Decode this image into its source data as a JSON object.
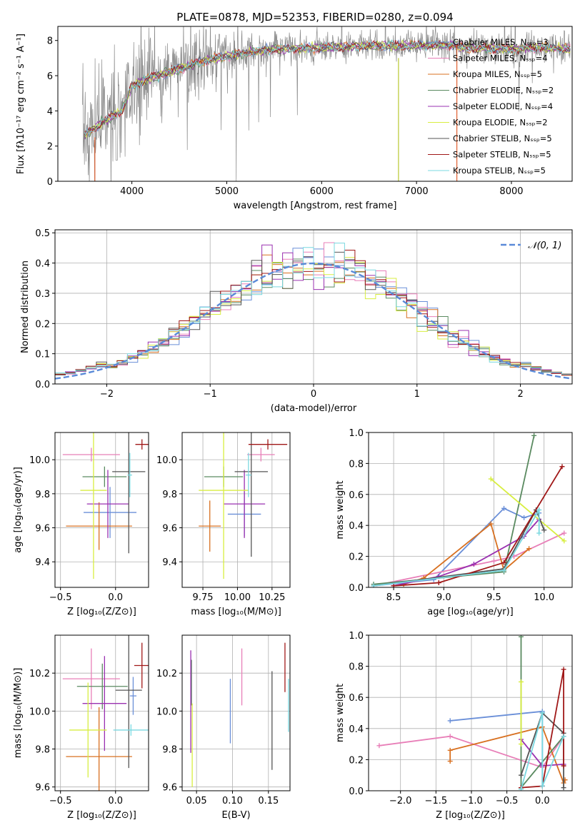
{
  "chart_data": [
    {
      "id": "spectrum",
      "type": "line",
      "title": "PLATE=0878, MJD=52353, FIBERID=0280, z=0.094",
      "xlabel": "wavelength [Angstrom, rest frame]",
      "ylabel": "Flux [fλ10⁻¹⁷ erg cm⁻² s⁻¹ A⁻¹]",
      "xlim": [
        3220,
        8640
      ],
      "ylim": [
        0,
        8.8
      ],
      "xticks": [
        4000,
        5000,
        6000,
        7000,
        8000
      ],
      "yticks": [
        0,
        2,
        4,
        6,
        8
      ],
      "grid": false,
      "legend_position": "upper-right",
      "series": [
        {
          "name": "Chabrier MILES, Nₛₛₚ=3",
          "color": "#6a8fd8"
        },
        {
          "name": "Salpeter MILES, Nₛₛₚ=4",
          "color": "#e87fb8"
        },
        {
          "name": "Kroupa MILES, Nₛₛₚ=5",
          "color": "#d87020"
        },
        {
          "name": "Chabrier ELODIE, Nₛₛₚ=2",
          "color": "#5a8a60"
        },
        {
          "name": "Salpeter ELODIE, Nₛₛₚ=4",
          "color": "#9a30b0"
        },
        {
          "name": "Kroupa ELODIE, Nₛₛₚ=2",
          "color": "#d8ee40"
        },
        {
          "name": "Chabrier STELIB, Nₛₛₚ=5",
          "color": "#555555"
        },
        {
          "name": "Salpeter STELIB, Nₛₛₚ=5",
          "color": "#a01818"
        },
        {
          "name": "Kroupa STELIB, Nₛₛₚ=5",
          "color": "#7ad8e0"
        }
      ],
      "continuum_x": [
        3500,
        3700,
        3900,
        4000,
        4200,
        4500,
        4800,
        5000,
        5200,
        5500,
        6000,
        6500,
        7000,
        7400,
        7500,
        8000,
        8300,
        8600
      ],
      "continuum_y": [
        2.6,
        3.4,
        4.0,
        5.4,
        5.9,
        6.4,
        6.9,
        7.1,
        7.3,
        7.5,
        7.6,
        7.7,
        7.7,
        7.75,
        7.6,
        7.5,
        7.6,
        7.5
      ]
    },
    {
      "id": "residuals",
      "type": "line",
      "xlabel": "(data-model)/error",
      "ylabel": "Normed distribution",
      "xlim": [
        -2.5,
        2.5
      ],
      "ylim": [
        0,
        0.51
      ],
      "xticks": [
        -2,
        -1,
        0,
        1,
        2
      ],
      "yticks": [
        0.0,
        0.1,
        0.2,
        0.3,
        0.4,
        0.5
      ],
      "grid": true,
      "legend": [
        "𝒩(0, 1)"
      ],
      "legend_position": "upper-right",
      "gauss_color": "#5a8ad8",
      "bin_width": 0.1
    },
    {
      "id": "age-vs-Z",
      "type": "scatter",
      "xlabel": "Z [log₁₀(Z/Z⊙)]",
      "ylabel": "age  [log₁₀(age/yr)]",
      "xlim": [
        -0.55,
        0.3
      ],
      "ylim": [
        9.25,
        10.16
      ],
      "xticks": [
        -0.5,
        0.0
      ],
      "yticks": [
        9.4,
        9.6,
        9.8,
        10.0
      ],
      "grid": true,
      "points": [
        {
          "series": 0,
          "x": -0.05,
          "y": 9.69,
          "xerr": 0.24,
          "yerr": 0.15
        },
        {
          "series": 1,
          "x": -0.22,
          "y": 10.03,
          "xerr": 0.26,
          "yerr": 0.04
        },
        {
          "series": 2,
          "x": -0.15,
          "y": 9.61,
          "xerr": 0.3,
          "yerr": 0.14
        },
        {
          "series": 3,
          "x": -0.1,
          "y": 9.9,
          "xerr": 0.2,
          "yerr": 0.06
        },
        {
          "series": 4,
          "x": -0.07,
          "y": 9.74,
          "xerr": 0.19,
          "yerr": 0.2
        },
        {
          "series": 5,
          "x": -0.2,
          "y": 9.82,
          "xerr": 0.12,
          "yerr": 0.52
        },
        {
          "series": 6,
          "x": 0.12,
          "y": 9.93,
          "xerr": 0.15,
          "yerr": 0.48
        },
        {
          "series": 7,
          "x": 0.24,
          "y": 10.09,
          "xerr": 0.06,
          "yerr": 0.03
        },
        {
          "series": 8,
          "x": 0.13,
          "y": 9.91,
          "xerr": 0.02,
          "yerr": 0.13
        }
      ]
    },
    {
      "id": "age-vs-mass",
      "type": "scatter",
      "xlabel": "mass [log₁₀(M/M⊙)]",
      "ylabel": "",
      "xlim": [
        9.6,
        10.38
      ],
      "ylim": [
        9.25,
        10.16
      ],
      "xticks": [
        9.75,
        10.0,
        10.25
      ],
      "yticks": [
        9.4,
        9.6,
        9.8,
        10.0
      ],
      "grid": true,
      "points": [
        {
          "series": 0,
          "x": 10.05,
          "y": 9.68,
          "xerr": 0.12,
          "yerr": 0.13
        },
        {
          "series": 1,
          "x": 10.17,
          "y": 10.03,
          "xerr": 0.1,
          "yerr": 0.04
        },
        {
          "series": 2,
          "x": 9.8,
          "y": 9.61,
          "xerr": 0.08,
          "yerr": 0.15
        },
        {
          "series": 3,
          "x": 9.9,
          "y": 9.9,
          "xerr": 0.14,
          "yerr": 0.06
        },
        {
          "series": 4,
          "x": 10.05,
          "y": 9.74,
          "xerr": 0.15,
          "yerr": 0.2
        },
        {
          "series": 5,
          "x": 9.9,
          "y": 9.82,
          "xerr": 0.18,
          "yerr": 0.52
        },
        {
          "series": 6,
          "x": 10.1,
          "y": 9.93,
          "xerr": 0.12,
          "yerr": 0.5
        },
        {
          "series": 7,
          "x": 10.22,
          "y": 10.09,
          "xerr": 0.14,
          "yerr": 0.03
        },
        {
          "series": 8,
          "x": 10.08,
          "y": 9.91,
          "xerr": 0.02,
          "yerr": 0.13
        }
      ]
    },
    {
      "id": "weight-vs-age",
      "type": "line",
      "xlabel": "age  [log₁₀(age/yr)]",
      "ylabel": "mass weight",
      "xlim": [
        8.25,
        10.28
      ],
      "ylim": [
        0,
        1.0
      ],
      "xticks": [
        8.5,
        9.0,
        9.5,
        10.0
      ],
      "yticks": [
        0.0,
        0.2,
        0.4,
        0.6,
        0.8,
        1.0
      ],
      "grid": true,
      "series": [
        {
          "series": 0,
          "x": [
            8.3,
            8.9,
            9.6,
            9.8,
            9.95
          ],
          "y": [
            0.01,
            0.05,
            0.51,
            0.45,
            0.48
          ]
        },
        {
          "series": 1,
          "x": [
            8.3,
            9.5,
            9.7,
            10.2
          ],
          "y": [
            0.01,
            0.17,
            0.2,
            0.35
          ]
        },
        {
          "series": 2,
          "x": [
            8.6,
            8.8,
            9.47,
            9.6,
            9.85
          ],
          "y": [
            0.02,
            0.06,
            0.41,
            0.11,
            0.25
          ]
        },
        {
          "series": 3,
          "x": [
            8.3,
            9.6,
            9.9
          ],
          "y": [
            0.02,
            0.1,
            0.98
          ]
        },
        {
          "series": 4,
          "x": [
            8.5,
            8.95,
            9.3,
            9.8,
            9.95
          ],
          "y": [
            0.01,
            0.07,
            0.15,
            0.33,
            0.44
          ]
        },
        {
          "series": 5,
          "x": [
            9.47,
            10.2
          ],
          "y": [
            0.7,
            0.3
          ]
        },
        {
          "series": 6,
          "x": [
            8.3,
            9.6,
            9.92,
            10.0
          ],
          "y": [
            0.01,
            0.12,
            0.5,
            0.37
          ]
        },
        {
          "series": 7,
          "x": [
            8.5,
            8.95,
            9.6,
            10.18
          ],
          "y": [
            0.01,
            0.03,
            0.16,
            0.78
          ]
        },
        {
          "series": 8,
          "x": [
            8.3,
            9.6,
            9.95,
            9.95
          ],
          "y": [
            0.01,
            0.11,
            0.5,
            0.35
          ]
        }
      ]
    },
    {
      "id": "mass-vs-Z",
      "type": "scatter",
      "xlabel": "Z [log₁₀(Z/Z⊙)]",
      "ylabel": "mass [log₁₀(M/M⊙)]",
      "xlim": [
        -0.55,
        0.3
      ],
      "ylim": [
        9.58,
        10.4
      ],
      "xticks": [
        -0.5,
        0.0
      ],
      "yticks": [
        9.6,
        9.8,
        10.0,
        10.2
      ],
      "grid": true,
      "points": [
        {
          "series": 0,
          "x": 0.16,
          "y": 10.08,
          "xerr": 0.03,
          "yerr": 0.1
        },
        {
          "series": 1,
          "x": -0.22,
          "y": 10.17,
          "xerr": 0.26,
          "yerr": 0.16
        },
        {
          "series": 2,
          "x": -0.15,
          "y": 9.76,
          "xerr": 0.3,
          "yerr": 0.26
        },
        {
          "series": 3,
          "x": -0.12,
          "y": 10.13,
          "xerr": 0.23,
          "yerr": 0.12
        },
        {
          "series": 4,
          "x": -0.1,
          "y": 10.04,
          "xerr": 0.2,
          "yerr": 0.25
        },
        {
          "series": 5,
          "x": -0.25,
          "y": 9.9,
          "xerr": 0.17,
          "yerr": 0.25
        },
        {
          "series": 6,
          "x": 0.12,
          "y": 10.11,
          "xerr": 0.12,
          "yerr": 0.41
        },
        {
          "series": 7,
          "x": 0.24,
          "y": 10.24,
          "xerr": 0.07,
          "yerr": 0.12
        },
        {
          "series": 8,
          "x": 0.14,
          "y": 9.9,
          "xerr": 0.16,
          "yerr": 0.03
        }
      ]
    },
    {
      "id": "mass-vs-ebv",
      "type": "scatter",
      "xlabel": "E(B-V)",
      "ylabel": "",
      "xlim": [
        0.03,
        0.18
      ],
      "ylim": [
        9.58,
        10.4
      ],
      "xticks": [
        0.05,
        0.1,
        0.15
      ],
      "yticks": [
        9.6,
        9.8,
        10.0,
        10.2
      ],
      "grid": true,
      "points": [
        {
          "series": 0,
          "x": 0.097,
          "y": 10.0,
          "xerr": 0,
          "yerr": 0.17
        },
        {
          "series": 1,
          "x": 0.113,
          "y": 10.18,
          "xerr": 0,
          "yerr": 0.15
        },
        {
          "series": 3,
          "x": 0.043,
          "y": 10.15,
          "xerr": 0,
          "yerr": 0.12
        },
        {
          "series": 4,
          "x": 0.042,
          "y": 10.05,
          "xerr": 0,
          "yerr": 0.27
        },
        {
          "series": 5,
          "x": 0.044,
          "y": 9.82,
          "xerr": 0,
          "yerr": 0.22
        },
        {
          "series": 6,
          "x": 0.155,
          "y": 9.95,
          "xerr": 0,
          "yerr": 0.26
        },
        {
          "series": 7,
          "x": 0.173,
          "y": 10.23,
          "xerr": 0,
          "yerr": 0.13
        },
        {
          "series": 8,
          "x": 0.178,
          "y": 10.03,
          "xerr": 0,
          "yerr": 0.14
        }
      ]
    },
    {
      "id": "weight-vs-Z",
      "type": "line",
      "xlabel": "Z [log₁₀(Z/Z⊙)]",
      "ylabel": "mass weight",
      "xlim": [
        -2.45,
        0.42
      ],
      "ylim": [
        0,
        1.0
      ],
      "xticks": [
        -2.0,
        -1.5,
        -1.0,
        -0.5,
        0.0
      ],
      "yticks": [
        0.0,
        0.2,
        0.4,
        0.6,
        0.8,
        1.0
      ],
      "grid": true,
      "series": [
        {
          "series": 0,
          "x": [
            -1.3,
            0.0,
            0.0
          ],
          "y": [
            0.45,
            0.51,
            0.03
          ]
        },
        {
          "series": 1,
          "x": [
            -2.3,
            -1.3,
            0.0,
            0.3
          ],
          "y": [
            0.29,
            0.35,
            0.15,
            0.35
          ]
        },
        {
          "series": 2,
          "x": [
            -1.3,
            -1.3,
            0.0,
            0.3,
            0.32
          ],
          "y": [
            0.19,
            0.26,
            0.41,
            0.05,
            0.07
          ]
        },
        {
          "series": 3,
          "x": [
            -0.3,
            -0.3,
            0.3
          ],
          "y": [
            0.99,
            0.02,
            0.35
          ]
        },
        {
          "series": 4,
          "x": [
            -0.3,
            0.0,
            0.3
          ],
          "y": [
            0.33,
            0.16,
            0.17
          ]
        },
        {
          "series": 5,
          "x": [
            -0.3,
            -0.3
          ],
          "y": [
            0.7,
            0.3
          ]
        },
        {
          "series": 6,
          "x": [
            -0.3,
            0.0,
            0.3,
            0.3
          ],
          "y": [
            0.1,
            0.5,
            0.37,
            0.02
          ]
        },
        {
          "series": 7,
          "x": [
            -0.3,
            0.0,
            0.3,
            0.3
          ],
          "y": [
            0.02,
            0.03,
            0.78,
            0.16
          ]
        },
        {
          "series": 8,
          "x": [
            -0.3,
            0.0,
            0.0,
            0.3
          ],
          "y": [
            0.01,
            0.5,
            0.03,
            0.35
          ]
        }
      ]
    }
  ]
}
